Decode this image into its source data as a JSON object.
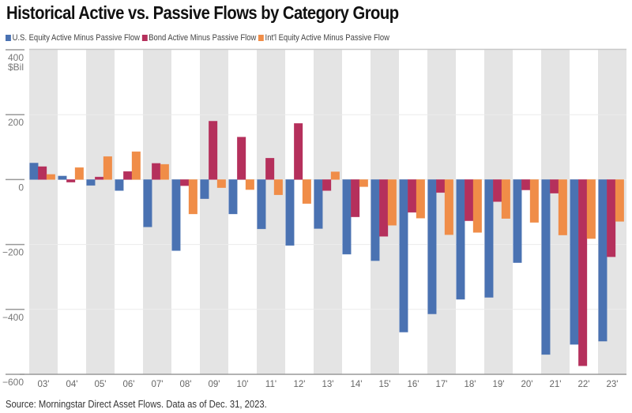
{
  "header": {
    "title": "Historical Active vs. Passive Flows by Category Group"
  },
  "footer": {
    "source": "Source: Morningstar Direct Asset Flows. Data as of Dec. 31, 2023."
  },
  "chart_data": {
    "type": "bar",
    "title": "Historical Active vs. Passive Flows by Category Group",
    "xlabel": "",
    "ylabel": "$Bil",
    "ylim": [
      -600,
      400
    ],
    "yticks": [
      400,
      200,
      0,
      -200,
      -400,
      -600
    ],
    "ytick_labels": [
      "400",
      "200",
      "0",
      "−200",
      "−400",
      "−600"
    ],
    "y_unit_label": "$Bil",
    "grid": true,
    "alternating_bands": true,
    "legend_position": "top-left",
    "categories": [
      "03'",
      "04'",
      "05'",
      "06'",
      "07'",
      "08'",
      "09'",
      "10'",
      "11'",
      "12'",
      "13'",
      "14'",
      "15'",
      "16'",
      "17'",
      "18'",
      "19'",
      "20'",
      "21'",
      "22'",
      "23'"
    ],
    "series": [
      {
        "name": "U.S. Equity Active Minus Passive Flow",
        "color": "#4a72b2",
        "values": [
          51,
          11,
          -18,
          -34,
          -146,
          -219,
          -59,
          -106,
          -152,
          -203,
          -151,
          -230,
          -250,
          -470,
          -414,
          -369,
          -363,
          -256,
          -539,
          -508,
          -498
        ]
      },
      {
        "name": "Bond Active Minus Passive Flow",
        "color": "#b5305c",
        "values": [
          40,
          -8,
          8,
          25,
          50,
          -19,
          180,
          131,
          66,
          173,
          -34,
          -115,
          -175,
          -101,
          -40,
          -127,
          -68,
          -32,
          -42,
          -574,
          -238
        ]
      },
      {
        "name": "Int'l Equity Active Minus Passive Flow",
        "color": "#f08d48",
        "values": [
          16,
          37,
          71,
          86,
          47,
          -106,
          -25,
          -31,
          -47,
          -74,
          24,
          -22,
          -141,
          -119,
          -170,
          -163,
          -120,
          -132,
          -171,
          -182,
          -129
        ]
      }
    ]
  }
}
